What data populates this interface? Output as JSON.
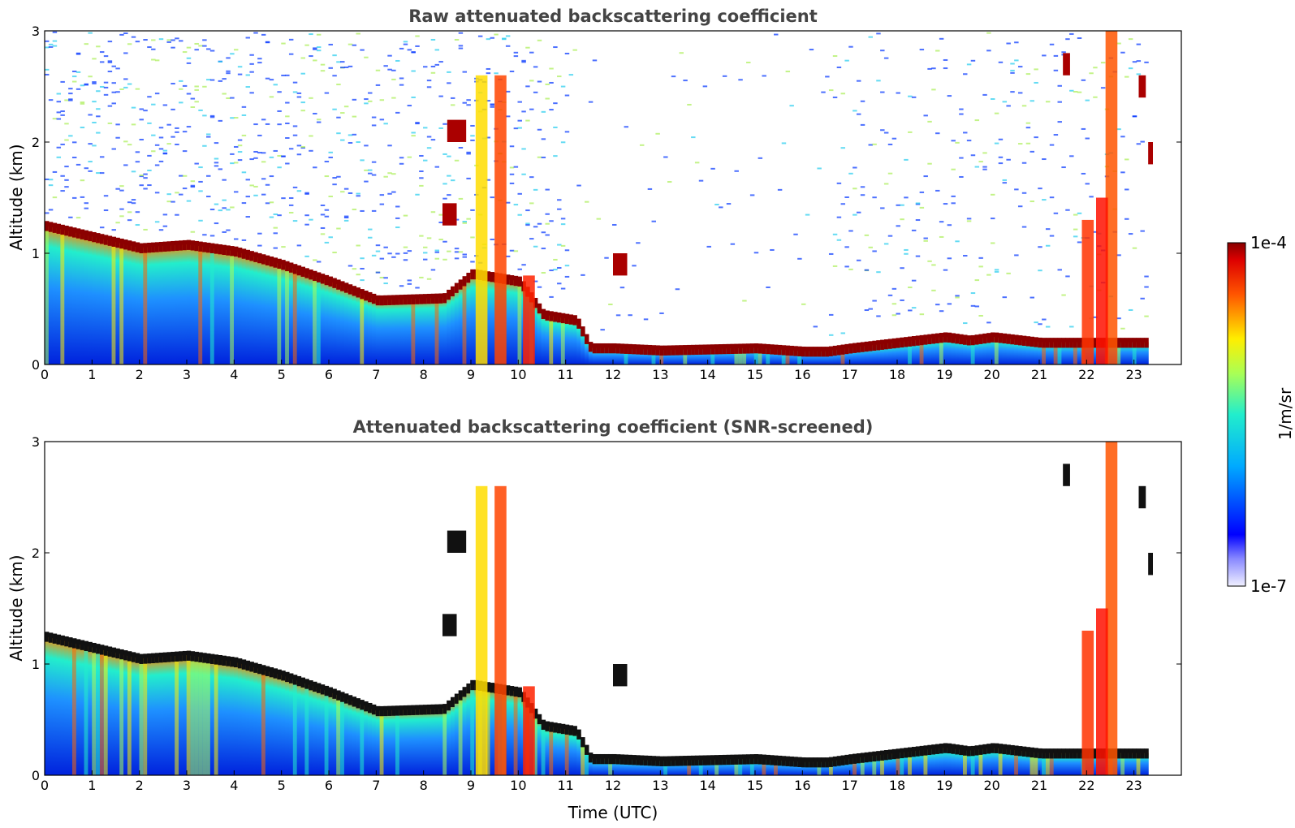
{
  "chart_data": [
    {
      "type": "heatmap",
      "title": "Raw attenuated backscattering coefficient",
      "xlabel": "",
      "ylabel": "Altitude (km)",
      "xlim": [
        0,
        24
      ],
      "ylim": [
        0,
        3
      ],
      "xticks": [
        "0",
        "1",
        "2",
        "3",
        "4",
        "5",
        "6",
        "7",
        "8",
        "9",
        "10",
        "11",
        "12",
        "13",
        "14",
        "15",
        "16",
        "17",
        "18",
        "19",
        "20",
        "21",
        "22",
        "23"
      ],
      "yticks": [
        "0",
        "1",
        "2",
        "3"
      ],
      "data_end_hour": 23.3,
      "layer_top_km": {
        "time_h": [
          0,
          1,
          2,
          3,
          4,
          5,
          6,
          7,
          8.4,
          9.0,
          10.0,
          10.5,
          11.2,
          11.5,
          12,
          13,
          14,
          15,
          16,
          16.5,
          17,
          18,
          19,
          19.5,
          20,
          21,
          21.6
        ],
        "altitude_km": [
          1.25,
          1.15,
          1.05,
          1.08,
          1.02,
          0.9,
          0.75,
          0.58,
          0.6,
          0.82,
          0.75,
          0.45,
          0.4,
          0.15,
          0.15,
          0.13,
          0.14,
          0.15,
          0.12,
          0.12,
          0.15,
          0.2,
          0.25,
          0.22,
          0.25,
          0.2,
          0.2
        ]
      },
      "screened": false
    },
    {
      "type": "heatmap",
      "title": "Attenuated backscattering coefficient (SNR-screened)",
      "xlabel": "Time (UTC)",
      "ylabel": "Altitude (km)",
      "xlim": [
        0,
        24
      ],
      "ylim": [
        0,
        3
      ],
      "xticks": [
        "0",
        "1",
        "2",
        "3",
        "4",
        "5",
        "6",
        "7",
        "8",
        "9",
        "10",
        "11",
        "12",
        "13",
        "14",
        "15",
        "16",
        "17",
        "18",
        "19",
        "20",
        "21",
        "22",
        "23"
      ],
      "yticks": [
        "0",
        "1",
        "2",
        "3"
      ],
      "data_end_hour": 23.3,
      "screened": true
    }
  ],
  "colorbar": {
    "label": "1/m/sr",
    "max_label": "1e-4",
    "min_label": "1e-7",
    "colormap": "jet"
  }
}
